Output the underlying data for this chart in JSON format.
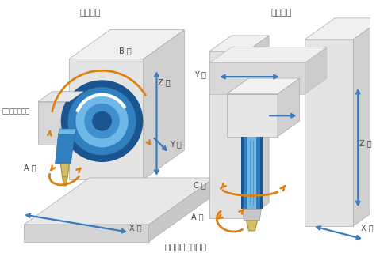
{
  "title_left": "（横型）",
  "title_right": "（門型）",
  "subtitle": "大物の加工に最適",
  "bg_color": "#ffffff",
  "blue_arrow": "#3a7abf",
  "orange_arrow": "#e08010",
  "light_gray": "#e8e8e8",
  "mid_gray": "#c8c8c8",
  "dark_gray": "#a8a8a8",
  "blue_dark": "#1a5590",
  "blue_mid": "#3080c0",
  "blue_light": "#70b8e8",
  "blue_lighter": "#a0d0f0"
}
